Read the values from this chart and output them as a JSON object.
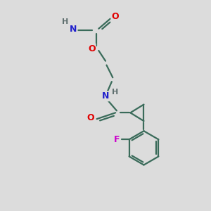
{
  "background_color": "#dcdcdc",
  "bond_color": "#3a6b5a",
  "atom_colors": {
    "O": "#e00000",
    "N": "#2020cc",
    "F": "#cc00cc",
    "H": "#607070",
    "C": "#3a6b5a"
  },
  "figsize": [
    3.0,
    3.0
  ],
  "dpi": 100
}
